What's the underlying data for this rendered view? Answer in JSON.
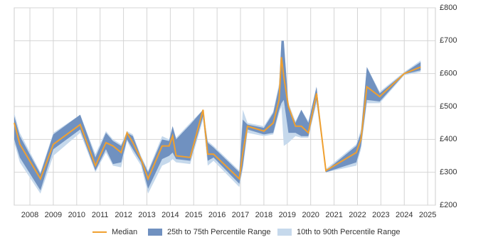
{
  "chart_data": {
    "type": "band-line",
    "x": [
      2007.33,
      2007.57,
      2008.45,
      2009.0,
      2010.15,
      2010.8,
      2011.25,
      2011.55,
      2011.9,
      2012.15,
      2012.4,
      2012.75,
      2013.05,
      2013.65,
      2013.95,
      2014.1,
      2014.25,
      2014.85,
      2015.4,
      2015.6,
      2015.85,
      2016.95,
      2017.1,
      2017.3,
      2018.0,
      2018.4,
      2018.65,
      2018.75,
      2018.85,
      2019.05,
      2019.35,
      2019.6,
      2019.9,
      2020.25,
      2020.65,
      2021.95,
      2022.15,
      2022.4,
      2022.95,
      2024.0,
      2024.7
    ],
    "series": [
      {
        "name": "10th to 90th Percentile Range",
        "color": "#c6d9ec",
        "low": [
          390,
          330,
          235,
          350,
          420,
          300,
          360,
          320,
          315,
          395,
          360,
          320,
          235,
          320,
          330,
          340,
          330,
          325,
          460,
          320,
          335,
          255,
          310,
          420,
          410,
          415,
          480,
          500,
          380,
          390,
          410,
          405,
          405,
          510,
          300,
          320,
          370,
          510,
          510,
          595,
          605
        ],
        "high": [
          480,
          420,
          300,
          420,
          475,
          355,
          425,
          400,
          385,
          425,
          415,
          350,
          305,
          410,
          400,
          440,
          405,
          450,
          490,
          395,
          380,
          305,
          490,
          450,
          440,
          485,
          570,
          700,
          700,
          510,
          455,
          490,
          455,
          560,
          310,
          385,
          430,
          620,
          545,
          605,
          640
        ]
      },
      {
        "name": "25th to 75th Percentile Range",
        "color": "#7091c0",
        "low": [
          400,
          345,
          245,
          370,
          430,
          305,
          370,
          325,
          330,
          400,
          370,
          330,
          250,
          340,
          350,
          360,
          340,
          335,
          470,
          335,
          345,
          265,
          320,
          430,
          415,
          420,
          490,
          510,
          520,
          420,
          420,
          410,
          410,
          520,
          300,
          330,
          380,
          520,
          515,
          598,
          610
        ],
        "high": [
          470,
          410,
          295,
          415,
          475,
          345,
          420,
          395,
          380,
          420,
          410,
          345,
          300,
          400,
          395,
          440,
          400,
          445,
          490,
          390,
          375,
          300,
          460,
          445,
          435,
          480,
          560,
          700,
          700,
          500,
          450,
          490,
          450,
          560,
          305,
          380,
          420,
          620,
          540,
          602,
          635
        ]
      },
      {
        "name": "Median",
        "color": "#f0a030",
        "values": [
          450,
          385,
          280,
          385,
          445,
          320,
          390,
          380,
          360,
          420,
          390,
          340,
          280,
          380,
          380,
          410,
          350,
          345,
          490,
          355,
          355,
          280,
          360,
          440,
          425,
          450,
          520,
          650,
          590,
          500,
          440,
          440,
          420,
          540,
          305,
          360,
          400,
          560,
          530,
          600,
          620
        ]
      }
    ],
    "xlim": [
      2007.33,
      2025.33
    ],
    "xticks": [
      2008,
      2009,
      2010,
      2011,
      2012,
      2013,
      2014,
      2015,
      2016,
      2017,
      2018,
      2019,
      2020,
      2021,
      2022,
      2023,
      2024,
      2025
    ],
    "ylim": [
      200,
      800
    ],
    "yticks": [
      {
        "value": 200,
        "label": "£200"
      },
      {
        "value": 300,
        "label": "£300"
      },
      {
        "value": 400,
        "label": "£400"
      },
      {
        "value": 500,
        "label": "£500"
      },
      {
        "value": 600,
        "label": "£600"
      },
      {
        "value": 700,
        "label": "£700"
      },
      {
        "value": 800,
        "label": "£800"
      }
    ],
    "grid": true
  }
}
